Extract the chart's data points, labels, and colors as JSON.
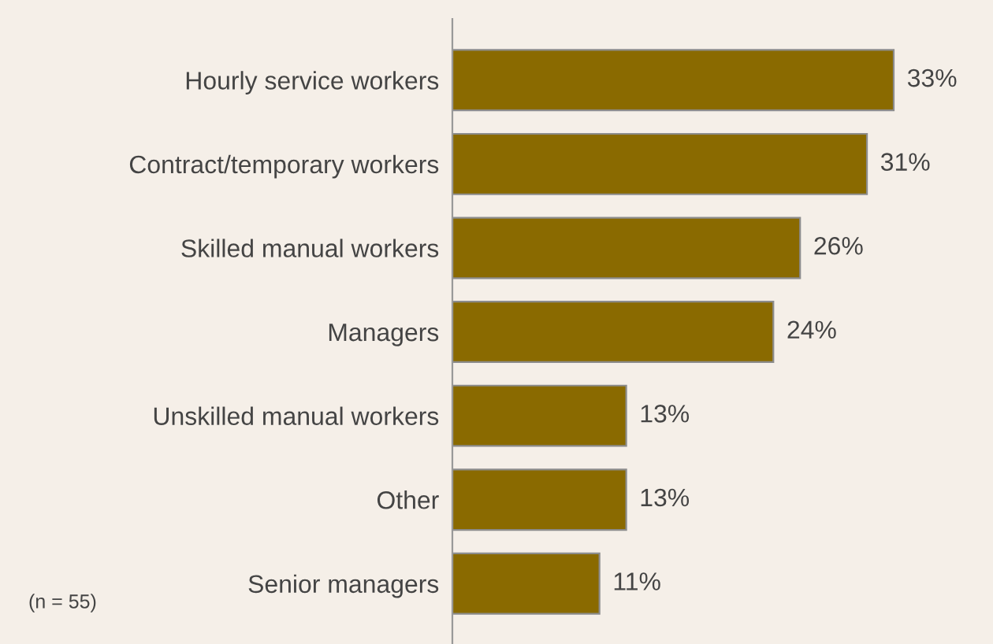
{
  "chart_data": {
    "type": "bar",
    "orientation": "horizontal",
    "categories": [
      "Hourly service workers",
      "Contract/temporary workers",
      "Skilled manual workers",
      "Managers",
      "Unskilled manual workers",
      "Other",
      "Senior managers"
    ],
    "values": [
      33,
      31,
      26,
      24,
      13,
      13,
      11
    ],
    "value_labels": [
      "33%",
      "31%",
      "26%",
      "24%",
      "13%",
      "13%",
      "11%"
    ],
    "color": "#8a6a00",
    "grid": false,
    "legend": false,
    "annotations": [
      "(n = 55)"
    ]
  }
}
